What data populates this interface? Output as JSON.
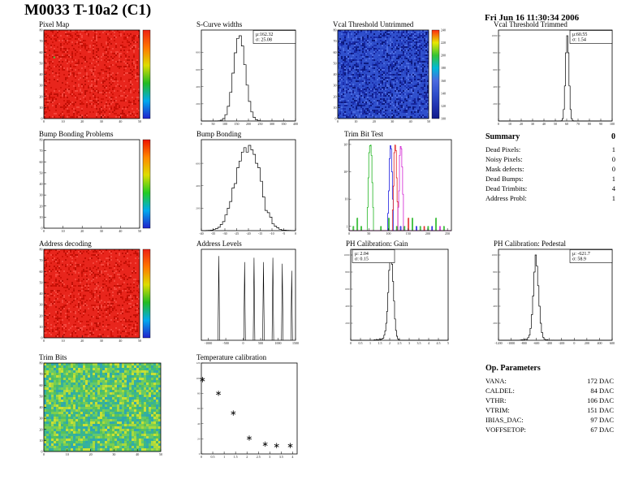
{
  "page": {
    "title": "M0033 T-10a2 (C1)",
    "datetime": "Fri Jun 16 11:30:34 2006"
  },
  "summary": {
    "title": "Summary",
    "value": "0",
    "rows": [
      {
        "label": "Dead Pixels:",
        "value": "1"
      },
      {
        "label": "Noisy Pixels:",
        "value": "0"
      },
      {
        "label": "Mask defects:",
        "value": "0"
      },
      {
        "label": "Dead Bumps:",
        "value": "1"
      },
      {
        "label": "Dead Trimbits:",
        "value": "4"
      },
      {
        "label": "Address Probl:",
        "value": "1"
      }
    ]
  },
  "op_parameters": {
    "title": "Op. Parameters",
    "rows": [
      {
        "label": "VANA:",
        "value": "172 DAC"
      },
      {
        "label": "CALDEL:",
        "value": "84 DAC"
      },
      {
        "label": "VTHR:",
        "value": "106 DAC"
      },
      {
        "label": "VTRIM:",
        "value": "151 DAC"
      },
      {
        "label": "IBIAS_DAC:",
        "value": "97 DAC"
      },
      {
        "label": "VOFFSETOP:",
        "value": "67 DAC"
      }
    ]
  },
  "chart_data": [
    {
      "id": "pixel_map",
      "type": "heatmap",
      "title": "Pixel Map",
      "x_range": [
        0,
        50
      ],
      "y_range": [
        0,
        80
      ],
      "xticks": [
        0,
        10,
        20,
        30,
        40,
        50
      ],
      "yticks": [
        0,
        10,
        20,
        30,
        40,
        50,
        60,
        70,
        80
      ],
      "base_color": "#e8251c",
      "noise": {
        "palette": [
          "#d11208",
          "#f4453c",
          "#c00f06"
        ],
        "density": 0.3,
        "cell": 2,
        "seed": 3
      },
      "defects": [
        {
          "fx": 0.1,
          "fy": 0.7,
          "color": "#36d23c"
        }
      ],
      "colorbar": {
        "stops": [
          "#2222cc",
          "#00aaee",
          "#22bb22",
          "#dddd00",
          "#ff7700",
          "#ee2213"
        ],
        "labels": []
      }
    },
    {
      "id": "s_curve",
      "type": "hist",
      "title": "S-Curve widths",
      "x_range": [
        0,
        400
      ],
      "bw": 10,
      "xticks": [
        0,
        50,
        100,
        150,
        200,
        250,
        300,
        350,
        400
      ],
      "bins": [
        [
          60,
          1
        ],
        [
          70,
          3
        ],
        [
          80,
          9
        ],
        [
          90,
          28
        ],
        [
          100,
          74
        ],
        [
          110,
          171
        ],
        [
          120,
          334
        ],
        [
          130,
          558
        ],
        [
          140,
          794
        ],
        [
          150,
          962
        ],
        [
          160,
          993
        ],
        [
          170,
          874
        ],
        [
          180,
          655
        ],
        [
          190,
          418
        ],
        [
          200,
          228
        ],
        [
          210,
          106
        ],
        [
          220,
          42
        ],
        [
          230,
          14
        ],
        [
          240,
          4
        ],
        [
          250,
          1
        ]
      ],
      "stats": {
        "lines": [
          "μ:162.32",
          "σ: 25.08"
        ],
        "pos": "tr"
      }
    },
    {
      "id": "vcal_untrimmed",
      "type": "heatmap",
      "title": "Vcal Threshold Untrimmed",
      "x_range": [
        0,
        50
      ],
      "y_range": [
        0,
        80
      ],
      "xticks": [
        0,
        10,
        20,
        30,
        40,
        50
      ],
      "yticks": [
        0,
        10,
        20,
        30,
        40,
        50,
        60,
        70,
        80
      ],
      "base_color": "#3050cc",
      "noise": {
        "palette": [
          "#16249a",
          "#1b2fae",
          "#2744c4",
          "#4a6ae0",
          "#0d1a7e"
        ],
        "density": 0.55,
        "cell": 2,
        "seed": 11
      },
      "colorbar": {
        "stops": [
          "#101a8a",
          "#2033b0",
          "#3050cc",
          "#4a6ae0",
          "#00b9d8",
          "#35c435",
          "#e8e800",
          "#ff2a12"
        ],
        "labels": [
          "100",
          "120",
          "140",
          "160",
          "180",
          "200",
          "220",
          "240"
        ]
      }
    },
    {
      "id": "vcal_trimmed",
      "type": "hist",
      "title": "Vcal Threshold Trimmed",
      "x_range": [
        0,
        100
      ],
      "bw": 1,
      "xticks": [
        0,
        10,
        20,
        30,
        40,
        50,
        60,
        70,
        80,
        90,
        100
      ],
      "bins": [
        [
          50,
          1
        ],
        [
          53,
          2
        ],
        [
          55,
          4
        ],
        [
          56,
          28
        ],
        [
          57,
          135
        ],
        [
          58,
          411
        ],
        [
          59,
          800
        ],
        [
          60,
          1000
        ],
        [
          61,
          800
        ],
        [
          62,
          411
        ],
        [
          63,
          135
        ],
        [
          64,
          28
        ],
        [
          65,
          4
        ],
        [
          67,
          1
        ]
      ],
      "stats": {
        "lines": [
          "μ:60.55",
          "σ: 1.54"
        ],
        "pos": "tr"
      }
    },
    {
      "id": "bump_problems",
      "type": "heatmap",
      "title": "Bump Bonding Problems",
      "x_range": [
        0,
        50
      ],
      "y_range": [
        0,
        80
      ],
      "xticks": [
        0,
        10,
        20,
        30,
        40,
        50
      ],
      "yticks": [
        0,
        10,
        20,
        30,
        40,
        50,
        60,
        70,
        80
      ],
      "base_color": "#ffffff",
      "colorbar": {
        "stops": [
          "#2222cc",
          "#00aaee",
          "#22cc22",
          "#dddd00",
          "#ff8800",
          "#ee1100"
        ],
        "labels": []
      }
    },
    {
      "id": "bump_bonding",
      "type": "hist",
      "title": "Bump Bonding",
      "x_range": [
        -40,
        0
      ],
      "bw": 1,
      "xticks": [
        -40,
        -35,
        -30,
        -25,
        -20,
        -15,
        -10,
        -5,
        0
      ],
      "bins": [
        [
          -38,
          2
        ],
        [
          -37,
          3
        ],
        [
          -36,
          5
        ],
        [
          -35,
          12
        ],
        [
          -34,
          18
        ],
        [
          -33,
          30
        ],
        [
          -32,
          55
        ],
        [
          -31,
          80
        ],
        [
          -30,
          140
        ],
        [
          -29,
          200
        ],
        [
          -28,
          260
        ],
        [
          -27,
          380
        ],
        [
          -26,
          420
        ],
        [
          -25,
          560
        ],
        [
          -24,
          620
        ],
        [
          -23,
          700
        ],
        [
          -22,
          740
        ],
        [
          -21,
          700
        ],
        [
          -20,
          760
        ],
        [
          -19,
          720
        ],
        [
          -18,
          680
        ],
        [
          -17,
          600
        ],
        [
          -16,
          560
        ],
        [
          -15,
          440
        ],
        [
          -14,
          300
        ],
        [
          -13,
          180
        ],
        [
          -12,
          160
        ],
        [
          -11,
          120
        ],
        [
          -10,
          60
        ],
        [
          -9,
          40
        ],
        [
          -8,
          25
        ],
        [
          -7,
          12
        ],
        [
          -6,
          6
        ],
        [
          -5,
          4
        ],
        [
          -4,
          3
        ],
        [
          -3,
          2
        ],
        [
          -2,
          1
        ]
      ]
    },
    {
      "id": "trim_bit_test",
      "type": "multi_hist",
      "title": "Trim Bit Test",
      "x_range": [
        0,
        260
      ],
      "bw": 2,
      "xticks": [
        0,
        50,
        100,
        150,
        200,
        250
      ],
      "ylabels": [
        "1",
        "10",
        "10²",
        "10³"
      ],
      "series": [
        {
          "name": "trimbit-green",
          "color": "#00aa00",
          "bins": [
            [
              10,
              1
            ],
            [
              20,
              2
            ],
            [
              30,
              1
            ],
            [
              46,
              5
            ],
            [
              48,
              60
            ],
            [
              50,
              500
            ],
            [
              52,
              900
            ],
            [
              54,
              950
            ],
            [
              56,
              400
            ],
            [
              58,
              40
            ],
            [
              60,
              5
            ],
            [
              80,
              1
            ],
            [
              100,
              2
            ],
            [
              120,
              1
            ],
            [
              140,
              1
            ],
            [
              160,
              2
            ],
            [
              180,
              1
            ],
            [
              200,
              1
            ],
            [
              220,
              2
            ],
            [
              240,
              1
            ]
          ]
        },
        {
          "name": "trimbit-blue",
          "color": "#0000dd",
          "bins": [
            [
              98,
              3
            ],
            [
              100,
              20
            ],
            [
              102,
              300
            ],
            [
              104,
              900
            ],
            [
              106,
              700
            ],
            [
              108,
              100
            ],
            [
              110,
              10
            ],
            [
              130,
              1
            ],
            [
              170,
              1
            ],
            [
              210,
              1
            ]
          ]
        },
        {
          "name": "trimbit-red",
          "color": "#dd0000",
          "bins": [
            [
              110,
              4
            ],
            [
              112,
              30
            ],
            [
              114,
              500
            ],
            [
              116,
              950
            ],
            [
              118,
              600
            ],
            [
              120,
              60
            ],
            [
              122,
              8
            ],
            [
              150,
              2
            ],
            [
              190,
              1
            ]
          ]
        },
        {
          "name": "trimbit-magenta",
          "color": "#cc00cc",
          "bins": [
            [
              124,
              5
            ],
            [
              126,
              20
            ],
            [
              128,
              400
            ],
            [
              130,
              850
            ],
            [
              132,
              700
            ],
            [
              134,
              150
            ],
            [
              136,
              15
            ],
            [
              230,
              1
            ]
          ]
        }
      ]
    },
    {
      "id": "address_decoding",
      "type": "heatmap",
      "title": "Address decoding",
      "x_range": [
        0,
        50
      ],
      "y_range": [
        0,
        80
      ],
      "xticks": [
        0,
        10,
        20,
        30,
        40,
        50
      ],
      "yticks": [
        0,
        10,
        20,
        30,
        40,
        50,
        60,
        70,
        80
      ],
      "base_color": "#e8251c",
      "noise": {
        "palette": [
          "#d11208",
          "#f4453c",
          "#c00f06"
        ],
        "density": 0.3,
        "cell": 2,
        "seed": 9
      },
      "colorbar": {
        "stops": [
          "#2222cc",
          "#00aaee",
          "#22bb22",
          "#dddd00",
          "#ff7700",
          "#ee2213"
        ],
        "labels": []
      }
    },
    {
      "id": "address_levels",
      "type": "spikes",
      "title": "Address Levels",
      "x_range": [
        -1200,
        1500
      ],
      "xticks": [
        -1000,
        -500,
        0,
        500,
        1000,
        1500
      ],
      "spikes": [
        [
          -700,
          0.97
        ],
        [
          40,
          0.9
        ],
        [
          310,
          0.95
        ],
        [
          580,
          0.9
        ],
        [
          850,
          0.95
        ],
        [
          1120,
          0.88
        ],
        [
          1390,
          0.8
        ]
      ]
    },
    {
      "id": "ph_gain",
      "type": "hist",
      "title": "PH Calibration: Gain",
      "x_range": [
        0,
        5
      ],
      "bw": 0.05,
      "xticks": [
        0,
        0.5,
        1,
        1.5,
        2,
        2.5,
        3,
        3.5,
        4,
        4.5,
        5
      ],
      "bins": [
        [
          1.2,
          6
        ],
        [
          1.3,
          10
        ],
        [
          1.35,
          8
        ],
        [
          1.45,
          12
        ],
        [
          1.5,
          9
        ],
        [
          1.55,
          14
        ],
        [
          1.6,
          18
        ],
        [
          1.65,
          25
        ],
        [
          1.7,
          60
        ],
        [
          1.75,
          110
        ],
        [
          1.8,
          200
        ],
        [
          1.85,
          340
        ],
        [
          1.9,
          560
        ],
        [
          1.95,
          820
        ],
        [
          2.0,
          980
        ],
        [
          2.05,
          1000
        ],
        [
          2.1,
          890
        ],
        [
          2.15,
          690
        ],
        [
          2.2,
          460
        ],
        [
          2.25,
          250
        ],
        [
          2.3,
          115
        ],
        [
          2.35,
          48
        ],
        [
          2.4,
          17
        ],
        [
          2.45,
          6
        ],
        [
          2.5,
          2
        ]
      ],
      "stats": {
        "lines": [
          "μ: 2.04",
          "σ: 0.15"
        ],
        "pos": "tl"
      }
    },
    {
      "id": "ph_pedestal",
      "type": "hist",
      "title": "PH Calibration: Pedestal",
      "x_range": [
        -1200,
        600
      ],
      "bw": 20,
      "xticks": [
        -1200,
        -1000,
        -800,
        -600,
        -400,
        -200,
        0,
        200,
        400,
        600
      ],
      "bins": [
        [
          -880,
          2
        ],
        [
          -860,
          3
        ],
        [
          -840,
          6
        ],
        [
          -820,
          4
        ],
        [
          -800,
          8
        ],
        [
          -780,
          12
        ],
        [
          -760,
          10
        ],
        [
          -740,
          30
        ],
        [
          -720,
          60
        ],
        [
          -700,
          140
        ],
        [
          -680,
          300
        ],
        [
          -660,
          520
        ],
        [
          -640,
          800
        ],
        [
          -620,
          1000
        ],
        [
          -600,
          870
        ],
        [
          -580,
          640
        ],
        [
          -560,
          400
        ],
        [
          -540,
          200
        ],
        [
          -520,
          90
        ],
        [
          -500,
          35
        ],
        [
          -480,
          12
        ],
        [
          -460,
          5
        ],
        [
          -440,
          8
        ],
        [
          -420,
          3
        ],
        [
          -380,
          2
        ],
        [
          -340,
          1
        ]
      ],
      "stats": {
        "lines": [
          "μ: -621.7",
          "σ: 58.9"
        ],
        "pos": "tr"
      }
    },
    {
      "id": "trim_bits_map",
      "type": "heatmap",
      "title": "Trim Bits",
      "x_range": [
        0,
        50
      ],
      "y_range": [
        0,
        80
      ],
      "xticks": [
        0,
        10,
        20,
        30,
        40,
        50
      ],
      "yticks": [
        0,
        10,
        20,
        30,
        40,
        50,
        60,
        70,
        80
      ],
      "base_color": "#4db86a",
      "noise": {
        "palette": [
          "#35b29a",
          "#2fa7b0",
          "#57c25b",
          "#7ccf4e",
          "#a8d93f",
          "#c9e034",
          "#3db887",
          "#63c96b"
        ],
        "density": 0.97,
        "cell": 3,
        "seed": 5
      }
    },
    {
      "id": "temperature",
      "type": "scatter",
      "title": "Temperature calibration",
      "x_range": [
        0,
        4.2
      ],
      "y_range": [
        0,
        120
      ],
      "xticks": [
        0,
        0.5,
        1,
        1.5,
        2,
        2.5,
        3,
        3.5,
        4
      ],
      "yticks": [
        0,
        20,
        40,
        60,
        80,
        100,
        120
      ],
      "marker": "star",
      "points": [
        [
          0.05,
          98
        ],
        [
          0.75,
          80
        ],
        [
          1.4,
          54
        ],
        [
          2.1,
          21
        ],
        [
          2.8,
          13
        ],
        [
          3.3,
          11
        ],
        [
          3.9,
          11
        ]
      ]
    }
  ]
}
